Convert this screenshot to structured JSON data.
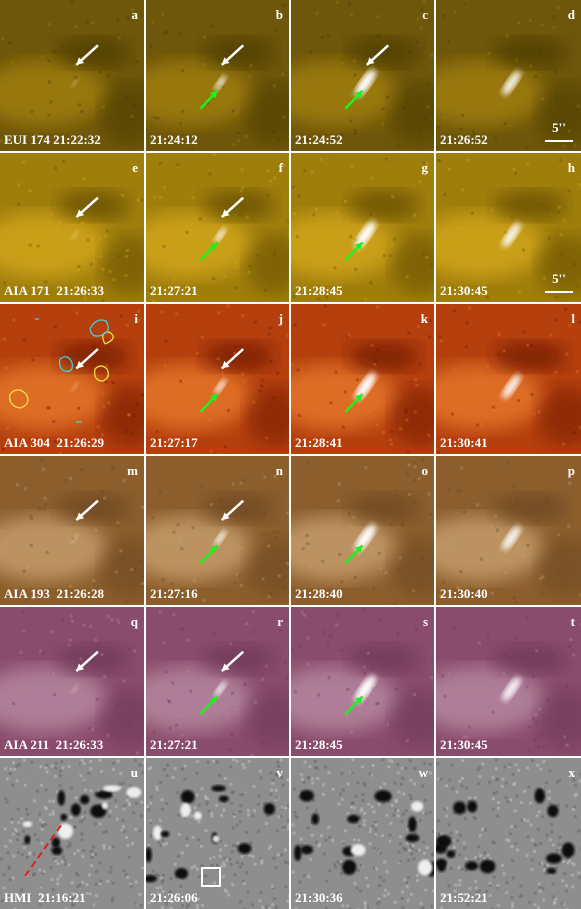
{
  "rows": [
    {
      "panels": [
        {
          "letter": "a",
          "label": "EUI 174 21:22:32"
        },
        {
          "letter": "b",
          "label": "21:24:12"
        },
        {
          "letter": "c",
          "label": "21:24:52"
        },
        {
          "letter": "d",
          "label": "21:26:52",
          "scale_label": "5''"
        }
      ]
    },
    {
      "panels": [
        {
          "letter": "e",
          "label": "AIA 171  21:26:33"
        },
        {
          "letter": "f",
          "label": "21:27:21"
        },
        {
          "letter": "g",
          "label": "21:28:45"
        },
        {
          "letter": "h",
          "label": "21:30:45",
          "scale_label": "5''"
        }
      ]
    },
    {
      "panels": [
        {
          "letter": "i",
          "label": "AIA 304  21:26:29"
        },
        {
          "letter": "j",
          "label": "21:27:17"
        },
        {
          "letter": "k",
          "label": "21:28:41"
        },
        {
          "letter": "l",
          "label": "21:30:41"
        }
      ]
    },
    {
      "panels": [
        {
          "letter": "m",
          "label": "AIA 193  21:26:28"
        },
        {
          "letter": "n",
          "label": "21:27:16"
        },
        {
          "letter": "o",
          "label": "21:28:40"
        },
        {
          "letter": "p",
          "label": "21:30:40"
        }
      ]
    },
    {
      "panels": [
        {
          "letter": "q",
          "label": "AIA 211  21:26:33"
        },
        {
          "letter": "r",
          "label": "21:27:21"
        },
        {
          "letter": "s",
          "label": "21:28:45"
        },
        {
          "letter": "t",
          "label": "21:30:45"
        }
      ]
    },
    {
      "panels": [
        {
          "letter": "u",
          "label": "HMI  21:16:21"
        },
        {
          "letter": "v",
          "label": "21:26:06"
        },
        {
          "letter": "w",
          "label": "21:30:36"
        },
        {
          "letter": "x",
          "label": "21:52:21"
        }
      ]
    }
  ]
}
